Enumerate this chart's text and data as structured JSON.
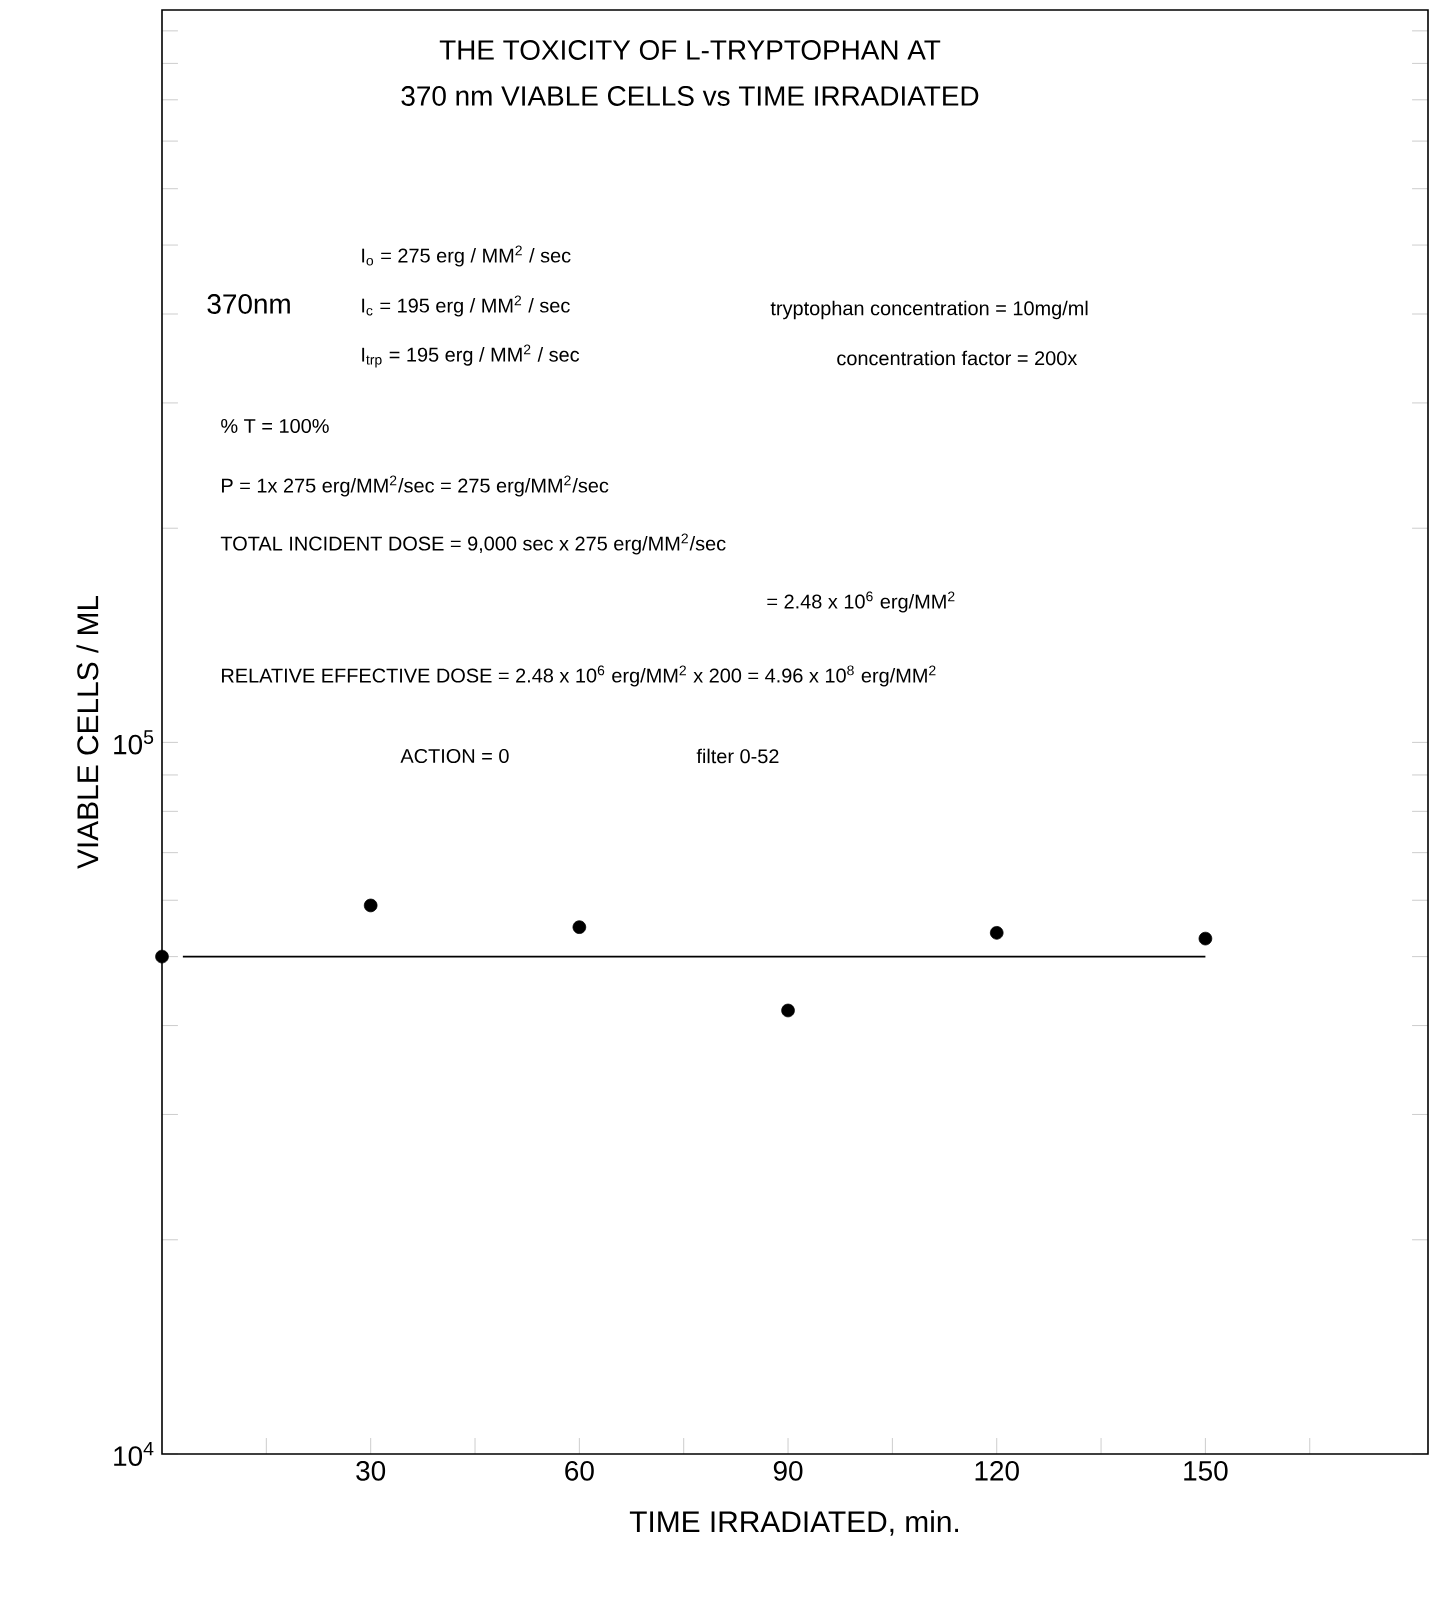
{
  "chart_data": {
    "type": "scatter",
    "title": "THE TOXICITY OF L-TRYPTOPHAN AT",
    "subtitle": "370 nm   VIABLE CELLS vs TIME IRRADIATED",
    "xlabel": "TIME IRRADIATED, min.",
    "ylabel": "VIABLE CELLS / ML",
    "log": "y",
    "grid": false,
    "xlim": [
      0,
      182
    ],
    "ylim": [
      10000,
      1070000
    ],
    "xticks": [
      {
        "value": 15,
        "label": null
      },
      30,
      {
        "value": 45,
        "label": null
      },
      60,
      {
        "value": 75,
        "label": null
      },
      90,
      {
        "value": 105,
        "label": null
      },
      120,
      {
        "value": 135,
        "label": null
      },
      150,
      {
        "value": 165,
        "label": null
      }
    ],
    "yticks": [
      {
        "value": 10000,
        "label": "10$^{4}$"
      },
      {
        "value": 20000,
        "label": null
      },
      {
        "value": 30000,
        "label": null
      },
      {
        "value": 40000,
        "label": null
      },
      {
        "value": 50000,
        "label": null
      },
      {
        "value": 60000,
        "label": null
      },
      {
        "value": 70000,
        "label": null
      },
      {
        "value": 80000,
        "label": null
      },
      {
        "value": 90000,
        "label": null
      },
      {
        "value": 100000,
        "label": "10$^{5}$"
      },
      {
        "value": 200000,
        "label": null
      },
      {
        "value": 300000,
        "label": null
      },
      {
        "value": 400000,
        "label": null
      },
      {
        "value": 500000,
        "label": null
      },
      {
        "value": 600000,
        "label": null
      },
      {
        "value": 700000,
        "label": null
      },
      {
        "value": 800000,
        "label": null
      },
      {
        "value": 900000,
        "label": null
      },
      {
        "value": 1000000,
        "label": null
      }
    ],
    "series": [
      {
        "marker": "circle",
        "color": "#000000",
        "x": [
          0,
          30,
          60,
          90,
          120,
          150
        ],
        "values": [
          50000,
          59000,
          55000,
          42000,
          54000,
          53000
        ]
      },
      {
        "type": "line",
        "marker": "none",
        "color": "#000000",
        "x": [
          3,
          150
        ],
        "values": [
          50000,
          50000
        ]
      }
    ],
    "annotations": [
      "370nm",
      "I$_{o}$ = 275 erg / MM$^{2}$ / sec",
      "I$_{c}$ = 195 erg / MM$^{2}$ / sec",
      "I$_{trp}$ = 195 erg / MM$^{2}$ / sec",
      "tryptophan concentration = 10mg/ml",
      "concentration factor = 200x",
      "% T = 100%",
      "P = 1x 275 erg/MM$^{2}$/sec = 275 erg/MM$^{2}$/sec",
      "TOTAL INCIDENT DOSE = 9,000 sec x 275 erg/MM$^{2}$/sec",
      "= 2.48 x 10$^{6}$ erg/MM$^{2}$",
      "RELATIVE EFFECTIVE DOSE = 2.48 x 10$^{6}$ erg/MM$^{2}$ x 200 = 4.96 x 10$^{8}$ erg/MM$^{2}$",
      "ACTION = 0",
      "filter 0-52"
    ]
  }
}
